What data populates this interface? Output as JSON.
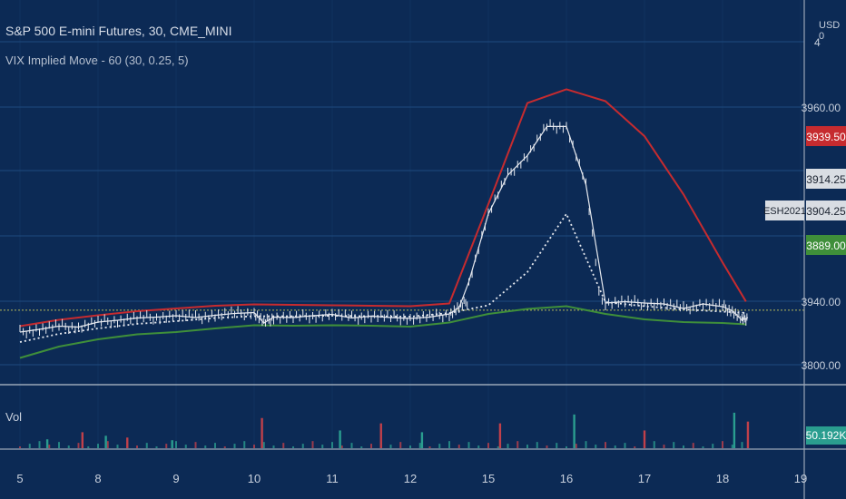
{
  "header": {
    "title": "S&P 500 E-mini Futures, 30, CME_MINI",
    "indicator": "VIX Implied Move - 60 (30, 0.25, 5)",
    "volume_label": "Vol",
    "currency_label": "USD",
    "currency_sub": "0"
  },
  "colors": {
    "background": "#0c2a55",
    "grid": "#1e4a7e",
    "upper_band": "#c62b2f",
    "lower_band": "#3f8f3a",
    "middle": "#e6e9ef",
    "price": "#e6e9ef",
    "volume_up": "#2a9d8f",
    "volume_down": "#c0404a",
    "price_line": "#b6b95a"
  },
  "chart_data": {
    "type": "line",
    "title": "S&P 500 E-mini Futures, 30, CME_MINI",
    "subtitle": "VIX Implied Move - 60 (30, 0.25, 5)",
    "x_ticks": [
      "5",
      "8",
      "9",
      "10",
      "11",
      "12",
      "15",
      "16",
      "17",
      "18",
      "19"
    ],
    "x_tick_index": [
      0,
      4,
      8,
      12,
      16,
      20,
      24,
      28,
      32,
      36,
      40
    ],
    "y_ticks": [
      3960,
      3940,
      3800
    ],
    "y_tick_labels": [
      "3960.00",
      "3940.00",
      "3800.00"
    ],
    "top_tick_label": "4",
    "top_tick_value": 3993,
    "ylim": [
      3780,
      3995
    ],
    "grid": true,
    "series": [
      {
        "name": "Upper",
        "color": "#c62b2f",
        "x": [
          0,
          2,
          4,
          6,
          8,
          10,
          12,
          14,
          16,
          18,
          20,
          22,
          24,
          26,
          28,
          30,
          32,
          34,
          36,
          37.2
        ],
        "values": [
          3885,
          3899,
          3909,
          3918,
          3924,
          3930,
          3933,
          3932,
          3931,
          3930,
          3929,
          3935,
          3950,
          3962,
          3969,
          3963,
          3957,
          3951,
          3944,
          3939.5
        ]
      },
      {
        "name": "Middle",
        "color": "#e6e9ef",
        "x": [
          0,
          2,
          4,
          6,
          8,
          10,
          12,
          14,
          16,
          18,
          20,
          22,
          24,
          26,
          28,
          30,
          32,
          34,
          36,
          37.2
        ],
        "values": [
          3850,
          3868,
          3880,
          3890,
          3896,
          3903,
          3907,
          3907,
          3908,
          3907,
          3906,
          3914,
          3931,
          3943,
          3949,
          3938,
          3929,
          3922,
          3917,
          3914.25
        ]
      },
      {
        "name": "Lower",
        "color": "#3f8f3a",
        "x": [
          0,
          2,
          4,
          6,
          8,
          10,
          12,
          14,
          16,
          18,
          20,
          22,
          24,
          26,
          28,
          30,
          32,
          34,
          36,
          37.2
        ],
        "values": [
          3815,
          3840,
          3856,
          3867,
          3872,
          3880,
          3887,
          3886,
          3887,
          3886,
          3884,
          3893,
          3912,
          3923,
          3929,
          3912,
          3900,
          3894,
          3892,
          3889
        ]
      },
      {
        "name": "Price",
        "color": "#e6e9ef",
        "x": [
          0,
          1,
          2,
          3,
          4,
          5,
          6,
          7,
          8,
          9,
          10,
          11,
          12,
          12.5,
          13,
          14,
          15,
          16,
          17,
          18,
          19,
          20,
          21,
          22,
          22.5,
          23,
          24,
          25,
          26,
          27,
          28,
          29,
          30,
          31,
          32,
          33,
          34,
          35,
          36,
          36.5,
          37,
          37.3
        ],
        "values": [
          3872,
          3878,
          3885,
          3883,
          3894,
          3898,
          3903,
          3905,
          3908,
          3904,
          3909,
          3913,
          3915,
          3892,
          3905,
          3904,
          3908,
          3911,
          3903,
          3907,
          3904,
          3902,
          3905,
          3912,
          3926,
          3942,
          3949,
          3953,
          3955,
          3958,
          3958,
          3952,
          3936,
          3939,
          3936,
          3934,
          3924,
          3934,
          3928,
          3919,
          3898,
          3904.25
        ]
      }
    ],
    "price_labels": [
      {
        "text": "3939.50",
        "value": 3939.5,
        "kind": "upper"
      },
      {
        "text": "3914.25",
        "value": 3914.25,
        "kind": "middle"
      },
      {
        "text": "3904.25",
        "value": 3904.25,
        "kind": "price"
      },
      {
        "text": "3889.00",
        "value": 3889,
        "kind": "lower"
      }
    ],
    "symbol_label": "ESH2021",
    "volume": {
      "label": "Vol",
      "last_value_label": "50.192K",
      "peaks": [
        {
          "x": 1.4,
          "value": 10
        },
        {
          "x": 3.2,
          "value": 18
        },
        {
          "x": 4.4,
          "value": 14
        },
        {
          "x": 5.5,
          "value": 12
        },
        {
          "x": 7.8,
          "value": 9
        },
        {
          "x": 12.4,
          "value": 34
        },
        {
          "x": 16.4,
          "value": 20
        },
        {
          "x": 18.5,
          "value": 28
        },
        {
          "x": 20.6,
          "value": 18
        },
        {
          "x": 24.6,
          "value": 28
        },
        {
          "x": 28.4,
          "value": 38
        },
        {
          "x": 32.0,
          "value": 20
        },
        {
          "x": 36.6,
          "value": 40
        },
        {
          "x": 37.3,
          "value": 30
        }
      ]
    }
  }
}
